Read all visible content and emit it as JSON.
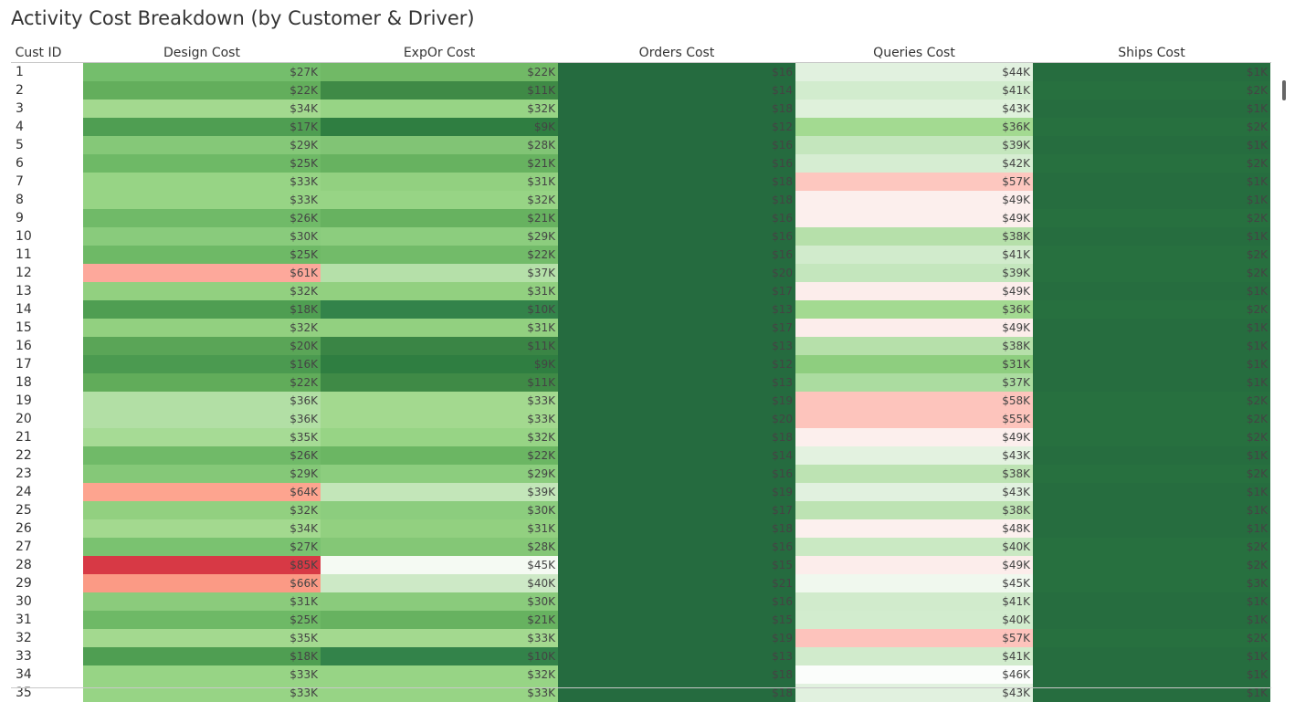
{
  "title": "Activity Cost Breakdown (by Customer & Driver)",
  "chart_data": {
    "type": "heatmap",
    "title": "Activity Cost Breakdown (by Customer & Driver)",
    "row_header": "Cust ID",
    "columns": [
      "Design Cost",
      "ExpOr Cost",
      "Orders Cost",
      "Queries Cost",
      "Ships Cost"
    ],
    "rows": [
      {
        "id": "1",
        "values": [
          "$27K",
          "$22K",
          "$16",
          "$44K",
          "$1K"
        ]
      },
      {
        "id": "2",
        "values": [
          "$22K",
          "$11K",
          "$14",
          "$41K",
          "$2K"
        ]
      },
      {
        "id": "3",
        "values": [
          "$34K",
          "$32K",
          "$18",
          "$43K",
          "$1K"
        ]
      },
      {
        "id": "4",
        "values": [
          "$17K",
          "$9K",
          "$12",
          "$36K",
          "$2K"
        ]
      },
      {
        "id": "5",
        "values": [
          "$29K",
          "$28K",
          "$16",
          "$39K",
          "$1K"
        ]
      },
      {
        "id": "6",
        "values": [
          "$25K",
          "$21K",
          "$16",
          "$42K",
          "$2K"
        ]
      },
      {
        "id": "7",
        "values": [
          "$33K",
          "$31K",
          "$18",
          "$57K",
          "$1K"
        ]
      },
      {
        "id": "8",
        "values": [
          "$33K",
          "$32K",
          "$18",
          "$49K",
          "$1K"
        ]
      },
      {
        "id": "9",
        "values": [
          "$26K",
          "$21K",
          "$16",
          "$49K",
          "$2K"
        ]
      },
      {
        "id": "10",
        "values": [
          "$30K",
          "$29K",
          "$16",
          "$38K",
          "$1K"
        ]
      },
      {
        "id": "11",
        "values": [
          "$25K",
          "$22K",
          "$16",
          "$41K",
          "$2K"
        ]
      },
      {
        "id": "12",
        "values": [
          "$61K",
          "$37K",
          "$20",
          "$39K",
          "$2K"
        ]
      },
      {
        "id": "13",
        "values": [
          "$32K",
          "$31K",
          "$17",
          "$49K",
          "$1K"
        ]
      },
      {
        "id": "14",
        "values": [
          "$18K",
          "$10K",
          "$13",
          "$36K",
          "$2K"
        ]
      },
      {
        "id": "15",
        "values": [
          "$32K",
          "$31K",
          "$17",
          "$49K",
          "$1K"
        ]
      },
      {
        "id": "16",
        "values": [
          "$20K",
          "$11K",
          "$13",
          "$38K",
          "$1K"
        ]
      },
      {
        "id": "17",
        "values": [
          "$16K",
          "$9K",
          "$12",
          "$31K",
          "$1K"
        ]
      },
      {
        "id": "18",
        "values": [
          "$22K",
          "$11K",
          "$13",
          "$37K",
          "$1K"
        ]
      },
      {
        "id": "19",
        "values": [
          "$36K",
          "$33K",
          "$19",
          "$58K",
          "$2K"
        ]
      },
      {
        "id": "20",
        "values": [
          "$36K",
          "$33K",
          "$20",
          "$55K",
          "$2K"
        ]
      },
      {
        "id": "21",
        "values": [
          "$35K",
          "$32K",
          "$18",
          "$49K",
          "$2K"
        ]
      },
      {
        "id": "22",
        "values": [
          "$26K",
          "$22K",
          "$14",
          "$43K",
          "$1K"
        ]
      },
      {
        "id": "23",
        "values": [
          "$29K",
          "$29K",
          "$16",
          "$38K",
          "$2K"
        ]
      },
      {
        "id": "24",
        "values": [
          "$64K",
          "$39K",
          "$19",
          "$43K",
          "$1K"
        ]
      },
      {
        "id": "25",
        "values": [
          "$32K",
          "$30K",
          "$17",
          "$38K",
          "$1K"
        ]
      },
      {
        "id": "26",
        "values": [
          "$34K",
          "$31K",
          "$18",
          "$48K",
          "$1K"
        ]
      },
      {
        "id": "27",
        "values": [
          "$27K",
          "$28K",
          "$16",
          "$40K",
          "$2K"
        ]
      },
      {
        "id": "28",
        "values": [
          "$85K",
          "$45K",
          "$15",
          "$49K",
          "$2K"
        ]
      },
      {
        "id": "29",
        "values": [
          "$66K",
          "$40K",
          "$21",
          "$45K",
          "$3K"
        ]
      },
      {
        "id": "30",
        "values": [
          "$31K",
          "$30K",
          "$16",
          "$41K",
          "$1K"
        ]
      },
      {
        "id": "31",
        "values": [
          "$25K",
          "$21K",
          "$15",
          "$40K",
          "$1K"
        ]
      },
      {
        "id": "32",
        "values": [
          "$35K",
          "$33K",
          "$19",
          "$57K",
          "$2K"
        ]
      },
      {
        "id": "33",
        "values": [
          "$18K",
          "$10K",
          "$13",
          "$41K",
          "$1K"
        ]
      },
      {
        "id": "34",
        "values": [
          "$33K",
          "$32K",
          "$18",
          "$46K",
          "$1K"
        ]
      },
      {
        "id": "35",
        "values": [
          "$33K",
          "$33K",
          "$18",
          "$43K",
          "$1K"
        ]
      }
    ],
    "colors": [
      [
        "#74be6c",
        "#71b966",
        "#256b3f",
        "#e1f1df",
        "#266d3f"
      ],
      [
        "#63ae5c",
        "#3f8a46",
        "#256b3f",
        "#d2ecce",
        "#27703f"
      ],
      [
        "#a3d98f",
        "#97d485",
        "#256b3f",
        "#dff1db",
        "#266d3f"
      ],
      [
        "#4f9e52",
        "#2f7e41",
        "#256b3f",
        "#a3da91",
        "#27703f"
      ],
      [
        "#85c878",
        "#81c475",
        "#256b3f",
        "#c4e6bd",
        "#266d3f"
      ],
      [
        "#6eb966",
        "#67b260",
        "#256b3f",
        "#d6edd2",
        "#27703f"
      ],
      [
        "#97d485",
        "#92d080",
        "#256b3f",
        "#fdc7bf",
        "#266d3f"
      ],
      [
        "#97d485",
        "#97d485",
        "#256b3f",
        "#fcefed",
        "#266d3f"
      ],
      [
        "#70ba68",
        "#67b260",
        "#256b3f",
        "#fcefed",
        "#27703f"
      ],
      [
        "#89cb7c",
        "#8ccd7e",
        "#256b3f",
        "#b6e0aa",
        "#266d3f"
      ],
      [
        "#6eb966",
        "#72bb69",
        "#256b3f",
        "#d1ebcc",
        "#27703f"
      ],
      [
        "#fda89b",
        "#b5e0a9",
        "#256b3f",
        "#c4e6bd",
        "#27703f"
      ],
      [
        "#92d080",
        "#92d080",
        "#256b3f",
        "#fcedeb",
        "#266d3f"
      ],
      [
        "#4f9e52",
        "#33834a",
        "#256b3f",
        "#a3da91",
        "#27703f"
      ],
      [
        "#92d080",
        "#92d080",
        "#256b3f",
        "#fcedeb",
        "#266d3f"
      ],
      [
        "#5aa557",
        "#3a8545",
        "#256b3f",
        "#b6e0aa",
        "#266d3f"
      ],
      [
        "#4b9a50",
        "#2f7e41",
        "#256b3f",
        "#8ece7f",
        "#266d3f"
      ],
      [
        "#61ac5a",
        "#3f8a46",
        "#256b3f",
        "#abdca0",
        "#266d3f"
      ],
      [
        "#b2dfa5",
        "#a3d98f",
        "#256b3f",
        "#fdc4bc",
        "#27703f"
      ],
      [
        "#b2dfa5",
        "#a3d98f",
        "#256b3f",
        "#fdc4bc",
        "#27703f"
      ],
      [
        "#a6db95",
        "#97d485",
        "#256b3f",
        "#fcefed",
        "#27703f"
      ],
      [
        "#70ba68",
        "#6bb663",
        "#256b3f",
        "#e3f2e0",
        "#266d3f"
      ],
      [
        "#85c878",
        "#8ccd7e",
        "#256b3f",
        "#bde3b3",
        "#27703f"
      ],
      [
        "#fda48f",
        "#c3e6b9",
        "#256b3f",
        "#e1f1df",
        "#266d3f"
      ],
      [
        "#92d080",
        "#8ccd7e",
        "#256b3f",
        "#bde3b3",
        "#266d3f"
      ],
      [
        "#a3d98f",
        "#92d080",
        "#256b3f",
        "#fcf0ee",
        "#266d3f"
      ],
      [
        "#7ac270",
        "#84c776",
        "#256b3f",
        "#cae9c3",
        "#27703f"
      ],
      [
        "#d73945",
        "#f5faf3",
        "#256b3f",
        "#fcedeb",
        "#27703f"
      ],
      [
        "#fb9a85",
        "#cde9c6",
        "#256b3f",
        "#f0f8ee",
        "#27703f"
      ],
      [
        "#8bcb7c",
        "#8acb7c",
        "#256b3f",
        "#d1ebcc",
        "#266d3f"
      ],
      [
        "#6eb966",
        "#67b260",
        "#256b3f",
        "#d2ecce",
        "#266d3f"
      ],
      [
        "#a3d98f",
        "#a3d98f",
        "#256b3f",
        "#fdc3bc",
        "#27703f"
      ],
      [
        "#4f9e52",
        "#33834a",
        "#256b3f",
        "#d1ebcc",
        "#266d3f"
      ],
      [
        "#97d485",
        "#97d485",
        "#256b3f",
        "#fbfdfb",
        "#266d3f"
      ],
      [
        "#97d485",
        "#97d485",
        "#256b3f",
        "#e1f1df",
        "#266d3f"
      ]
    ]
  }
}
